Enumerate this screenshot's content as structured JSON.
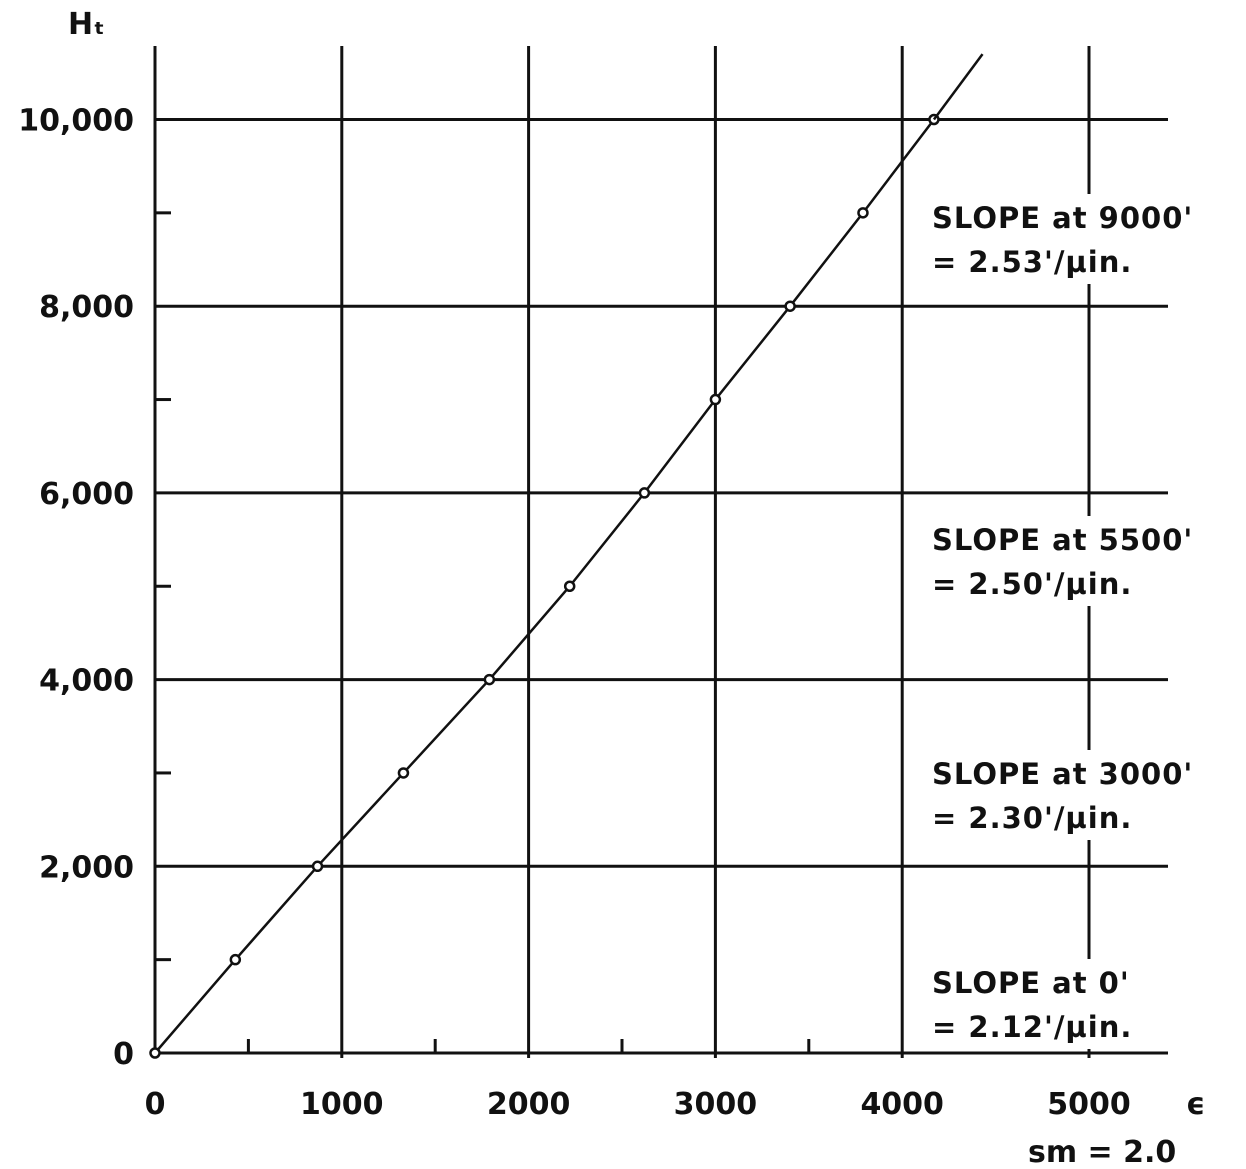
{
  "chart_data": {
    "type": "line",
    "title": "",
    "xlabel": "ϵ",
    "ylabel": "Hₜ",
    "note": "sm = 2.0",
    "xlim": [
      0,
      5000
    ],
    "ylim": [
      0,
      10000
    ],
    "grid": true,
    "x_ticks": [
      0,
      1000,
      2000,
      3000,
      4000,
      5000
    ],
    "x_tick_labels": [
      "0",
      "1000",
      "2000",
      "3000",
      "4000",
      "5000"
    ],
    "x_minor_ticks": [
      500,
      1500,
      2500,
      3500
    ],
    "y_ticks": [
      0,
      2000,
      4000,
      6000,
      8000,
      10000
    ],
    "y_tick_labels": [
      "0",
      "2,000",
      "4,000",
      "6,000",
      "8,000",
      "10,000"
    ],
    "y_minor_ticks": [
      1000,
      3000,
      5000,
      7000,
      9000
    ],
    "series": [
      {
        "markers": "circle",
        "x": [
          0,
          430,
          870,
          1330,
          1790,
          2220,
          2620,
          3000,
          3400,
          3790,
          4170
        ],
        "y": [
          0,
          1000,
          2000,
          3000,
          4000,
          5000,
          6000,
          7000,
          8000,
          9000,
          10000
        ]
      }
    ],
    "line_extension": [
      [
        4170,
        10000
      ],
      [
        4430,
        10700
      ]
    ],
    "annotations": [
      {
        "line1": "SLOPE  at 9000'",
        "line2": "= 2.53'/µin."
      },
      {
        "line1": "SLOPE  at 5500'",
        "line2": "= 2.50'/µin."
      },
      {
        "line1": "SLOPE  at 3000'",
        "line2": "= 2.30'/µin."
      },
      {
        "line1": "SLOPE  at 0'",
        "line2": "= 2.12'/µin."
      }
    ]
  }
}
